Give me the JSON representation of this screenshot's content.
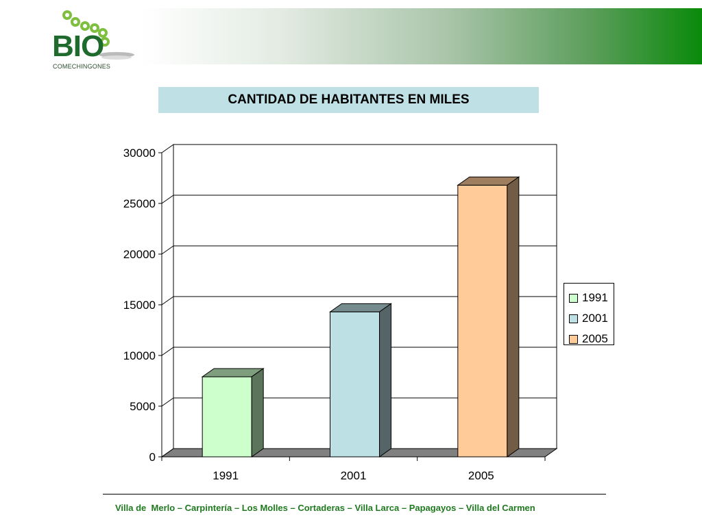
{
  "logo": {
    "brand": "BIO",
    "subtitle": "COMECHINGONES"
  },
  "colors": {
    "header_gradient_end": "#0a8a0a",
    "title_bg": "#bfe0e5",
    "footer_text": "#1f7a1f",
    "wall": "#808080"
  },
  "chart_data": {
    "type": "bar",
    "title": "CANTIDAD DE HABITANTES EN MILES",
    "categories": [
      "1991",
      "2001",
      "2005"
    ],
    "values": [
      7900,
      14300,
      26800
    ],
    "colors": [
      "#ccffcc",
      "#bde0e4",
      "#ffcc99"
    ],
    "ylim": [
      0,
      30000
    ],
    "yticks": [
      0,
      5000,
      10000,
      15000,
      20000,
      25000,
      30000
    ],
    "legend": {
      "position": "right",
      "entries": [
        "1991",
        "2001",
        "2005"
      ]
    },
    "grid": true,
    "three_d": true
  },
  "footer": {
    "text": "Villa de  Merlo – Carpintería – Los Molles – Cortaderas – Villa Larca – Papagayos – Villa del Carmen"
  }
}
